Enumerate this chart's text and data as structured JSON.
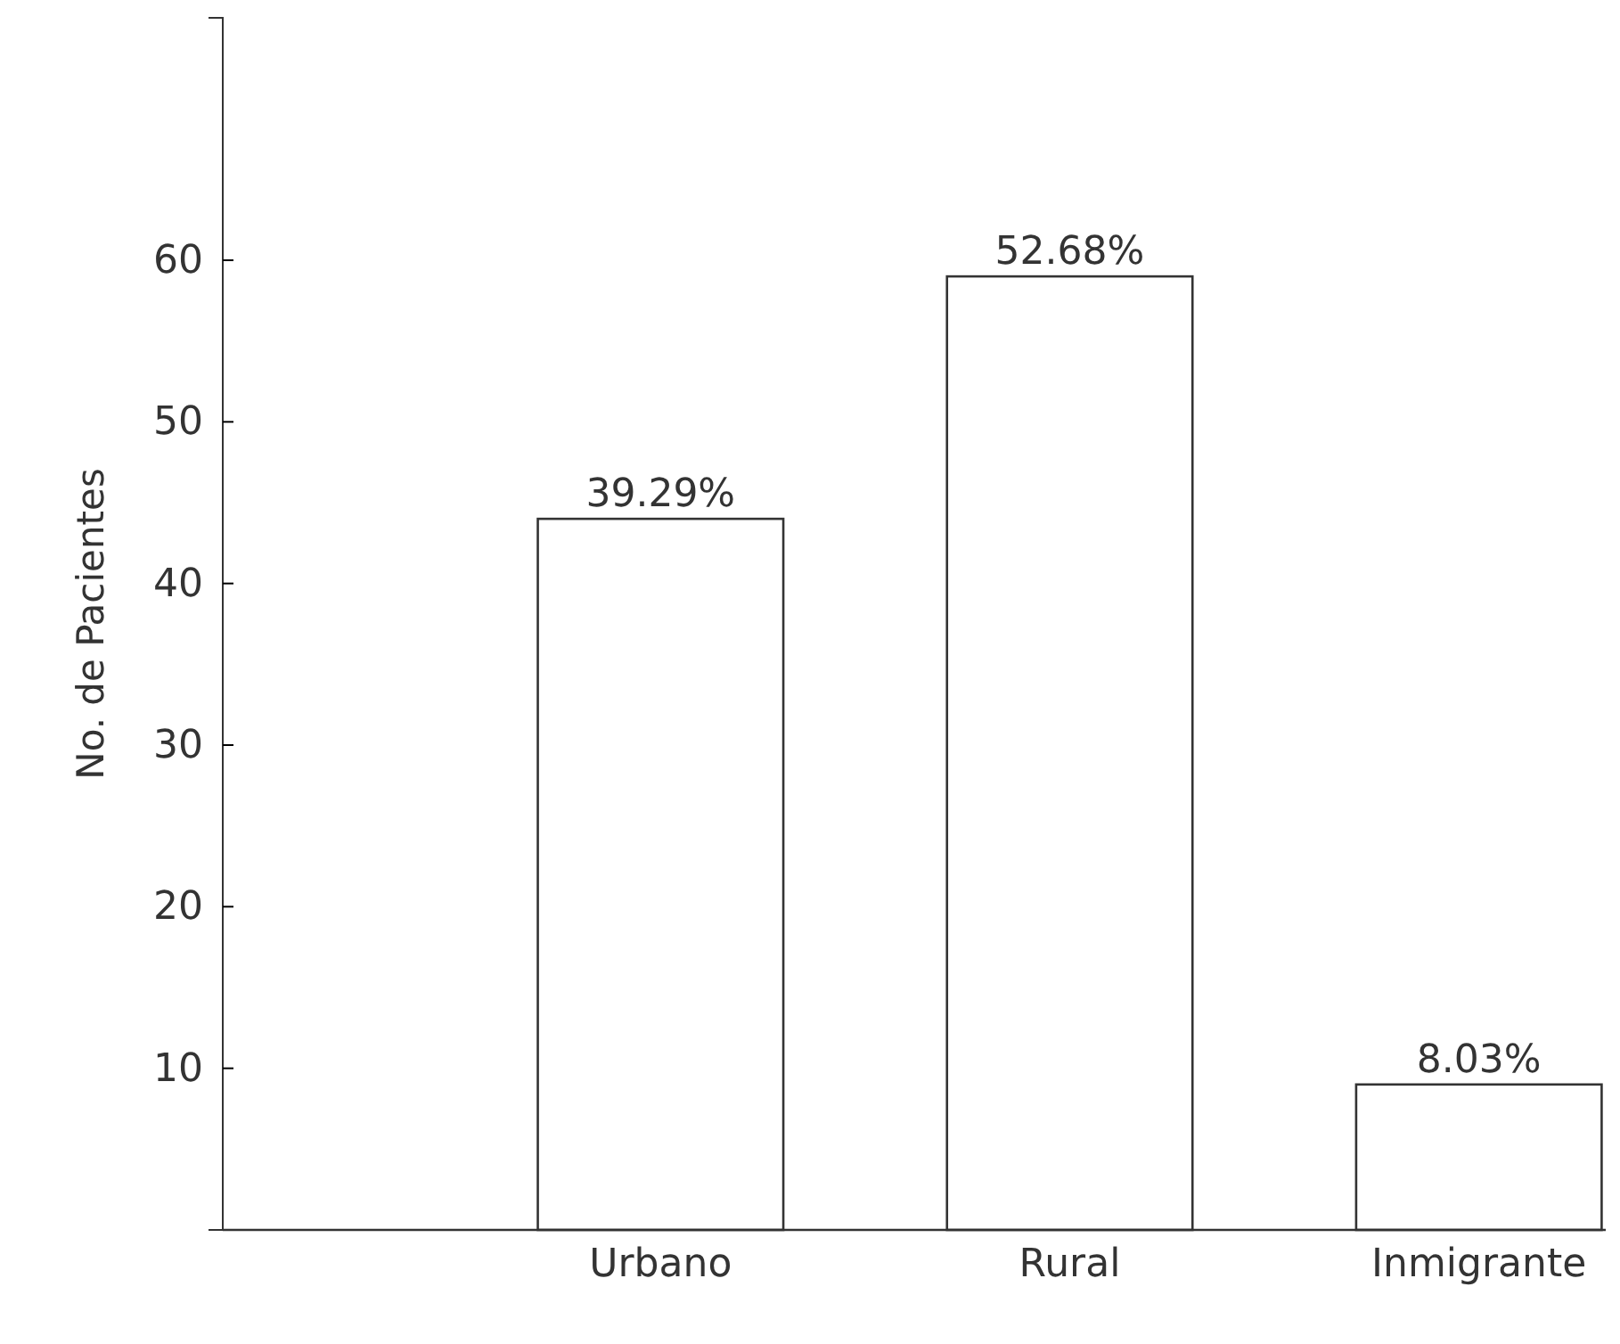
{
  "chart_data": {
    "type": "bar",
    "ylabel": "No. de Pacientes",
    "categories": [
      "Urbano",
      "Rural",
      "Inmigrante"
    ],
    "values": [
      44,
      59,
      9
    ],
    "annotations": [
      {
        "text": "39.29%",
        "x": "Urbano",
        "y": 44
      },
      {
        "text": "52.68%",
        "x": "Rural",
        "y": 59
      },
      {
        "text": "8.03%",
        "x": "Inmigrante",
        "y": 9
      }
    ],
    "color": "#ffffff",
    "ylim": [
      0,
      75
    ],
    "yticks": [
      10,
      20,
      30,
      40,
      50,
      60
    ],
    "grid": false
  }
}
